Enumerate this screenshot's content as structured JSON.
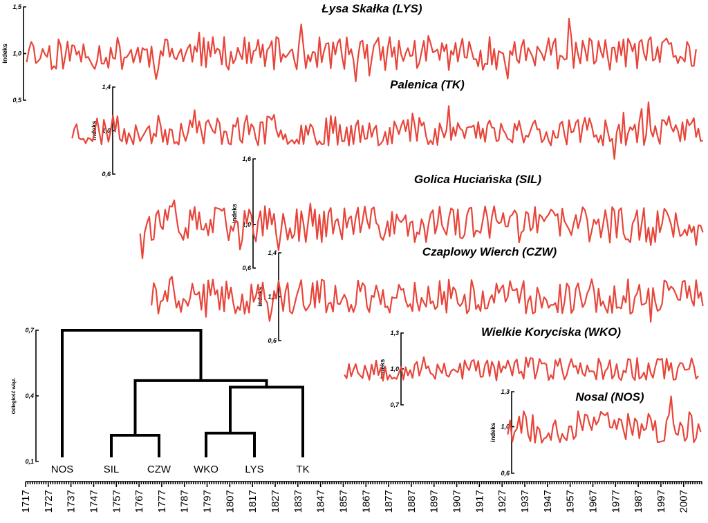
{
  "chart_data": [
    {
      "type": "line",
      "title": "Łysa Skałka (LYS)",
      "ylabel": "indeks",
      "yticks": [
        "1,5",
        "1,0",
        "0,5"
      ],
      "ylim": [
        0.5,
        1.5
      ],
      "x_start": 1717,
      "x_end": 2012,
      "color": "#e8453a",
      "pattern": "LYS"
    },
    {
      "type": "line",
      "title": "Palenica (TK)",
      "ylabel": "indeks",
      "yticks": [
        "1,4",
        "1,0",
        "0,6"
      ],
      "ylim": [
        0.6,
        1.4
      ],
      "x_start": 1737,
      "x_end": 2015,
      "color": "#e8453a",
      "pattern": "TK"
    },
    {
      "type": "line",
      "title": "Golica Huciańska (SIL)",
      "ylabel": "indeks",
      "yticks": [
        "1,6",
        "1,0",
        "0,6"
      ],
      "ylim": [
        0.6,
        1.6
      ],
      "x_start": 1767,
      "x_end": 2015,
      "color": "#e8453a",
      "pattern": "SIL"
    },
    {
      "type": "line",
      "title": "Czaplowy Wierch (CZW)",
      "ylabel": "indeks",
      "yticks": [
        "1,4",
        "1,0",
        "0,6"
      ],
      "ylim": [
        0.6,
        1.4
      ],
      "x_start": 1772,
      "x_end": 2015,
      "color": "#e8453a",
      "pattern": "CZW"
    },
    {
      "type": "line",
      "title": "Wielkie Koryciska (WKO)",
      "ylabel": "indeks",
      "yticks": [
        "1,3",
        "1,0",
        "0,7"
      ],
      "ylim": [
        0.7,
        1.3
      ],
      "x_start": 1857,
      "x_end": 2013,
      "color": "#e8453a",
      "pattern": "WKO"
    },
    {
      "type": "line",
      "title": "Nosal (NOS)",
      "ylabel": "indeks",
      "yticks": [
        "1,3",
        "1,0",
        "0,6"
      ],
      "ylim": [
        0.6,
        1.3
      ],
      "x_start": 1929,
      "x_end": 2014,
      "color": "#e8453a",
      "pattern": "NOS"
    }
  ],
  "x_axis": {
    "ticks": [
      "1717",
      "1727",
      "1737",
      "1747",
      "1757",
      "1767",
      "1777",
      "1787",
      "1797",
      "1807",
      "1817",
      "1827",
      "1837",
      "1847",
      "1857",
      "1867",
      "1877",
      "1887",
      "1897",
      "1907",
      "1917",
      "1927",
      "1937",
      "1947",
      "1957",
      "1967",
      "1977",
      "1987",
      "1997",
      "2007"
    ],
    "range": [
      1717,
      2015
    ]
  },
  "dendrogram": {
    "ylabel": "Odległość wiąz.",
    "yticks": [
      "0,7",
      "0,4",
      "0,1"
    ],
    "ylim": [
      0.1,
      0.7
    ],
    "leaves": [
      "NOS",
      "SIL",
      "CZW",
      "WKO",
      "LYS",
      "TK"
    ],
    "merges": [
      {
        "a": "SIL",
        "b": "CZW",
        "height": 0.22
      },
      {
        "a": "WKO",
        "b": "LYS",
        "height": 0.23
      },
      {
        "a": "WKO+LYS",
        "b": "TK",
        "height": 0.44
      },
      {
        "a": "SIL+CZW",
        "b": "WKO+LYS+TK",
        "height": 0.47
      },
      {
        "a": "NOS",
        "b": "SIL+CZW+WKO+LYS+TK",
        "height": 0.7
      }
    ]
  }
}
